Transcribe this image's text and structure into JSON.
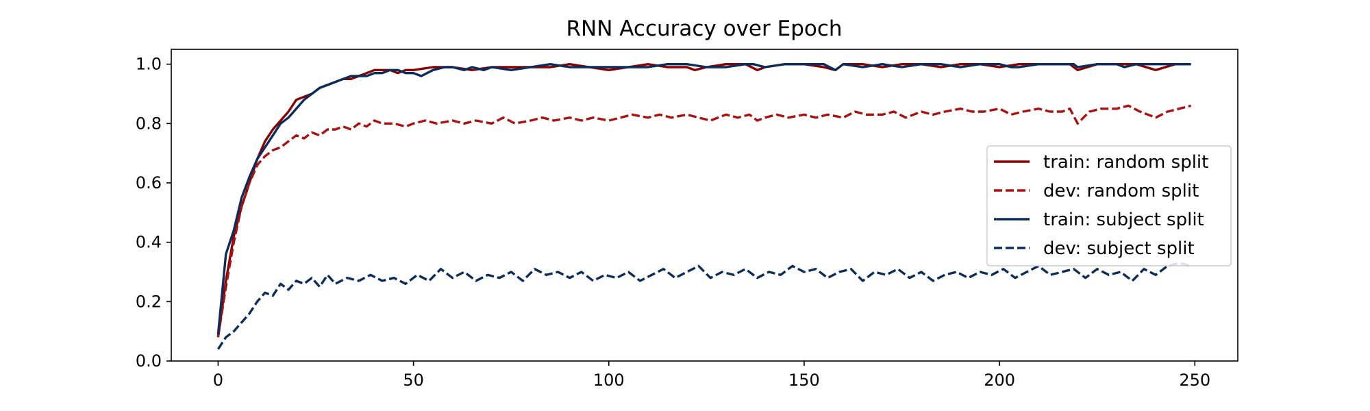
{
  "chart_data": {
    "type": "line",
    "title": "RNN Accuracy over Epoch",
    "xlabel": "",
    "ylabel": "",
    "xlim": [
      -12,
      261
    ],
    "ylim": [
      0,
      1.05
    ],
    "xticks": [
      0,
      50,
      100,
      150,
      200,
      250
    ],
    "yticks": [
      0.0,
      0.2,
      0.4,
      0.6,
      0.8,
      1.0
    ],
    "grid": false,
    "legend_position": "center-right",
    "series": [
      {
        "name": "train: random split",
        "color": "#8b0000",
        "dash": "solid",
        "x": [
          0,
          2,
          4,
          6,
          8,
          10,
          12,
          14,
          16,
          18,
          20,
          22,
          24,
          26,
          28,
          30,
          32,
          34,
          36,
          38,
          40,
          42,
          44,
          46,
          48,
          50,
          55,
          60,
          65,
          70,
          75,
          80,
          85,
          90,
          95,
          100,
          105,
          110,
          115,
          120,
          122,
          125,
          130,
          135,
          138,
          140,
          145,
          150,
          155,
          158,
          160,
          165,
          170,
          175,
          180,
          185,
          190,
          195,
          200,
          205,
          210,
          215,
          218,
          220,
          225,
          230,
          235,
          240,
          245,
          249
        ],
        "y": [
          0.08,
          0.27,
          0.42,
          0.52,
          0.6,
          0.68,
          0.74,
          0.78,
          0.81,
          0.84,
          0.88,
          0.89,
          0.9,
          0.92,
          0.93,
          0.94,
          0.95,
          0.95,
          0.96,
          0.97,
          0.98,
          0.98,
          0.98,
          0.97,
          0.98,
          0.98,
          0.99,
          0.99,
          0.98,
          0.99,
          0.99,
          0.99,
          0.99,
          1.0,
          0.99,
          0.98,
          0.99,
          1.0,
          0.99,
          0.99,
          0.98,
          0.99,
          1.0,
          1.0,
          0.98,
          0.99,
          1.0,
          1.0,
          0.99,
          0.98,
          1.0,
          1.0,
          0.99,
          1.0,
          1.0,
          0.99,
          1.0,
          1.0,
          0.99,
          1.0,
          1.0,
          1.0,
          1.0,
          0.98,
          1.0,
          1.0,
          1.0,
          0.98,
          1.0,
          1.0
        ]
      },
      {
        "name": "dev: random split",
        "color": "#aa1111",
        "dash": "dashed",
        "x": [
          0,
          2,
          4,
          6,
          8,
          10,
          12,
          14,
          16,
          18,
          20,
          22,
          24,
          26,
          28,
          30,
          32,
          34,
          36,
          38,
          40,
          42,
          45,
          48,
          50,
          53,
          56,
          60,
          63,
          66,
          70,
          73,
          76,
          80,
          83,
          86,
          90,
          93,
          96,
          100,
          103,
          106,
          110,
          113,
          116,
          120,
          123,
          126,
          130,
          133,
          136,
          138,
          140,
          143,
          146,
          150,
          153,
          156,
          160,
          163,
          166,
          170,
          173,
          176,
          180,
          183,
          186,
          190,
          193,
          196,
          200,
          203,
          206,
          210,
          213,
          216,
          218,
          220,
          223,
          226,
          230,
          233,
          236,
          240,
          243,
          246,
          249
        ],
        "y": [
          0.08,
          0.25,
          0.4,
          0.52,
          0.6,
          0.66,
          0.69,
          0.71,
          0.72,
          0.74,
          0.76,
          0.75,
          0.77,
          0.76,
          0.78,
          0.78,
          0.79,
          0.78,
          0.8,
          0.79,
          0.81,
          0.8,
          0.8,
          0.79,
          0.8,
          0.81,
          0.8,
          0.81,
          0.8,
          0.81,
          0.8,
          0.82,
          0.8,
          0.81,
          0.82,
          0.81,
          0.82,
          0.81,
          0.82,
          0.81,
          0.82,
          0.83,
          0.82,
          0.83,
          0.82,
          0.83,
          0.82,
          0.81,
          0.83,
          0.82,
          0.83,
          0.81,
          0.82,
          0.83,
          0.82,
          0.83,
          0.82,
          0.83,
          0.82,
          0.84,
          0.83,
          0.83,
          0.84,
          0.82,
          0.84,
          0.83,
          0.84,
          0.85,
          0.84,
          0.84,
          0.85,
          0.83,
          0.84,
          0.85,
          0.84,
          0.84,
          0.85,
          0.8,
          0.84,
          0.85,
          0.85,
          0.86,
          0.84,
          0.82,
          0.84,
          0.85,
          0.86
        ]
      },
      {
        "name": "train: subject split",
        "color": "#0b2d5b",
        "dash": "solid",
        "x": [
          0,
          2,
          4,
          6,
          8,
          10,
          12,
          14,
          16,
          18,
          20,
          22,
          24,
          26,
          28,
          30,
          32,
          34,
          36,
          38,
          40,
          42,
          44,
          46,
          48,
          50,
          52,
          55,
          58,
          60,
          63,
          65,
          68,
          70,
          75,
          80,
          85,
          90,
          95,
          100,
          105,
          110,
          115,
          120,
          125,
          130,
          135,
          137,
          140,
          145,
          150,
          155,
          158,
          160,
          165,
          170,
          175,
          180,
          185,
          190,
          195,
          200,
          203,
          205,
          210,
          215,
          219,
          220,
          225,
          230,
          232,
          235,
          240,
          245,
          249
        ],
        "y": [
          0.09,
          0.36,
          0.44,
          0.55,
          0.62,
          0.68,
          0.72,
          0.76,
          0.8,
          0.82,
          0.85,
          0.88,
          0.9,
          0.92,
          0.93,
          0.94,
          0.95,
          0.96,
          0.96,
          0.96,
          0.97,
          0.97,
          0.98,
          0.98,
          0.97,
          0.97,
          0.96,
          0.98,
          0.99,
          0.99,
          0.98,
          0.99,
          0.98,
          0.99,
          0.98,
          0.99,
          1.0,
          0.99,
          0.99,
          0.99,
          0.99,
          0.99,
          1.0,
          1.0,
          0.99,
          0.99,
          1.0,
          1.0,
          0.99,
          1.0,
          1.0,
          1.0,
          0.98,
          1.0,
          0.99,
          1.0,
          0.99,
          1.0,
          1.0,
          0.99,
          1.0,
          1.0,
          0.99,
          0.99,
          1.0,
          1.0,
          1.0,
          0.99,
          1.0,
          1.0,
          0.99,
          1.0,
          1.0,
          1.0,
          1.0
        ]
      },
      {
        "name": "dev: subject split",
        "color": "#0b2d5b",
        "dash": "dashed",
        "x": [
          0,
          2,
          4,
          6,
          8,
          10,
          12,
          14,
          16,
          18,
          20,
          22,
          24,
          26,
          28,
          30,
          33,
          36,
          39,
          42,
          45,
          48,
          51,
          54,
          57,
          60,
          63,
          66,
          69,
          72,
          75,
          78,
          81,
          84,
          87,
          90,
          93,
          96,
          99,
          102,
          105,
          108,
          111,
          114,
          117,
          120,
          123,
          126,
          129,
          132,
          135,
          138,
          141,
          144,
          147,
          150,
          153,
          156,
          159,
          162,
          165,
          168,
          171,
          174,
          177,
          180,
          183,
          186,
          189,
          192,
          195,
          198,
          201,
          204,
          207,
          210,
          213,
          216,
          219,
          222,
          225,
          228,
          231,
          234,
          237,
          240,
          243,
          246,
          249
        ],
        "y": [
          0.04,
          0.08,
          0.1,
          0.13,
          0.16,
          0.2,
          0.23,
          0.22,
          0.26,
          0.24,
          0.27,
          0.26,
          0.28,
          0.25,
          0.29,
          0.26,
          0.28,
          0.27,
          0.29,
          0.27,
          0.28,
          0.26,
          0.29,
          0.27,
          0.31,
          0.28,
          0.3,
          0.27,
          0.29,
          0.28,
          0.3,
          0.27,
          0.31,
          0.29,
          0.3,
          0.28,
          0.3,
          0.27,
          0.29,
          0.28,
          0.3,
          0.27,
          0.29,
          0.31,
          0.28,
          0.3,
          0.32,
          0.28,
          0.3,
          0.29,
          0.31,
          0.28,
          0.3,
          0.29,
          0.32,
          0.3,
          0.31,
          0.28,
          0.3,
          0.31,
          0.27,
          0.3,
          0.29,
          0.31,
          0.28,
          0.3,
          0.27,
          0.29,
          0.3,
          0.28,
          0.3,
          0.29,
          0.31,
          0.28,
          0.3,
          0.32,
          0.29,
          0.3,
          0.31,
          0.28,
          0.31,
          0.29,
          0.3,
          0.27,
          0.31,
          0.29,
          0.32,
          0.33,
          0.32
        ]
      }
    ]
  }
}
